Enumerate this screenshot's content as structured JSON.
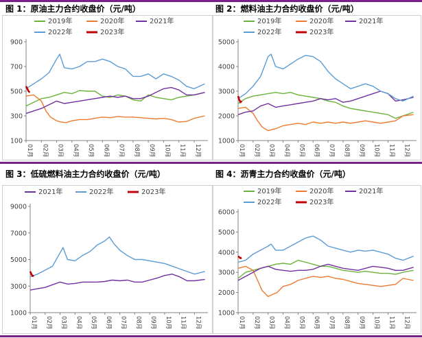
{
  "colors": {
    "2019": "#6bb23a",
    "2020": "#ee7a2f",
    "2021": "#7030a0",
    "2022": "#5b9bd5",
    "2023": "#c00000",
    "frame": "#7a1f8c"
  },
  "panels": [
    {
      "title": "图 1：原油主力合约收盘价（元/吨）"
    },
    {
      "title": "图 2：燃料油主力合约收盘价（元/吨）"
    },
    {
      "title": "图 3：低硫燃料油主力合约收盘价（元/吨）"
    },
    {
      "title": "图 4：沥青主力合约收盘价（元/吨）"
    }
  ],
  "chart_data": [
    {
      "type": "line",
      "title": "原油主力合约收盘价（元/吨）",
      "unit": "元/吨",
      "ylim": [
        100,
        900
      ],
      "yticks": [
        100,
        300,
        500,
        700,
        900
      ],
      "xticks": [
        "01月",
        "02月",
        "03月",
        "04月",
        "05月",
        "06月",
        "07月",
        "08月",
        "09月",
        "10月",
        "11月",
        "12月"
      ],
      "legend": "top",
      "series": [
        {
          "name": "2019年",
          "x": [
            1,
            1.5,
            2,
            2.5,
            3,
            3.5,
            4,
            4.5,
            5,
            5.5,
            6,
            6.5,
            7,
            7.5,
            8,
            8.5,
            9,
            9.5,
            10,
            10.5,
            11,
            11.5,
            12,
            12.7
          ],
          "y": [
            380,
            410,
            440,
            450,
            470,
            490,
            480,
            505,
            500,
            500,
            460,
            450,
            470,
            460,
            430,
            420,
            470,
            450,
            440,
            430,
            450,
            460,
            470,
            490
          ]
        },
        {
          "name": "2020年",
          "x": [
            1,
            1.5,
            2,
            2.3,
            2.6,
            3,
            3.3,
            3.6,
            4,
            4.5,
            5,
            5.5,
            6,
            6.5,
            7,
            7.5,
            8,
            8.5,
            9,
            9.5,
            10,
            10.5,
            11,
            11.5,
            12,
            12.7
          ],
          "y": [
            460,
            470,
            420,
            340,
            290,
            260,
            250,
            245,
            260,
            270,
            270,
            280,
            290,
            285,
            295,
            290,
            290,
            285,
            280,
            275,
            280,
            270,
            250,
            255,
            280,
            300
          ]
        },
        {
          "name": "2021年",
          "x": [
            1,
            1.5,
            2,
            2.5,
            3,
            3.5,
            4,
            4.5,
            5,
            5.5,
            6,
            6.5,
            7,
            7.5,
            8,
            8.5,
            9,
            9.5,
            10,
            10.5,
            11,
            11.5,
            12,
            12.7
          ],
          "y": [
            320,
            340,
            360,
            390,
            420,
            400,
            410,
            420,
            430,
            440,
            450,
            460,
            450,
            460,
            440,
            440,
            460,
            490,
            520,
            530,
            510,
            470,
            470,
            490
          ]
        },
        {
          "name": "2022年",
          "x": [
            1,
            1.5,
            2,
            2.5,
            3,
            3.2,
            3.5,
            4,
            4.5,
            5,
            5.5,
            6,
            6.5,
            7,
            7.5,
            8,
            8.5,
            9,
            9.5,
            10,
            10.5,
            11,
            11.5,
            12,
            12.7
          ],
          "y": [
            520,
            560,
            600,
            650,
            760,
            800,
            690,
            680,
            700,
            740,
            740,
            760,
            740,
            700,
            680,
            620,
            620,
            640,
            600,
            640,
            620,
            590,
            540,
            520,
            560
          ]
        },
        {
          "name": "2023年",
          "x": [
            1,
            1.08,
            1.16,
            1.24
          ],
          "y": [
            540,
            520,
            500,
            490
          ]
        }
      ]
    },
    {
      "type": "line",
      "title": "燃料油主力合约收盘价（元/吨）",
      "unit": "元/吨",
      "ylim": [
        1000,
        5000
      ],
      "yticks": [
        1000,
        2000,
        3000,
        4000,
        5000
      ],
      "xticks": [
        "01月",
        "02月",
        "03月",
        "04月",
        "05月",
        "06月",
        "07月",
        "08月",
        "09月",
        "10月",
        "11月",
        "12月"
      ],
      "legend": "top",
      "series": [
        {
          "name": "2019年",
          "x": [
            1,
            1.5,
            2,
            2.5,
            3,
            3.5,
            4,
            4.5,
            5,
            5.5,
            6,
            6.5,
            7,
            7.5,
            8,
            8.5,
            9,
            9.5,
            10,
            10.5,
            11,
            11.5,
            12,
            12.7
          ],
          "y": [
            2500,
            2700,
            2800,
            2850,
            2900,
            2950,
            2900,
            2950,
            2850,
            2800,
            2750,
            2700,
            2600,
            2550,
            2400,
            2300,
            2250,
            2200,
            2150,
            2100,
            2050,
            1900,
            2000,
            2150
          ]
        },
        {
          "name": "2020年",
          "x": [
            1,
            1.5,
            2,
            2.3,
            2.6,
            3,
            3.3,
            3.6,
            4,
            4.5,
            5,
            5.5,
            6,
            6.5,
            7,
            7.5,
            8,
            8.5,
            9,
            9.5,
            10,
            10.5,
            11,
            11.5,
            12,
            12.7
          ],
          "y": [
            2300,
            2350,
            2100,
            1800,
            1550,
            1400,
            1450,
            1500,
            1600,
            1650,
            1700,
            1650,
            1750,
            1700,
            1750,
            1700,
            1750,
            1700,
            1750,
            1800,
            1750,
            1700,
            1750,
            1800,
            2000,
            2050
          ]
        },
        {
          "name": "2021年",
          "x": [
            1,
            1.5,
            2,
            2.5,
            3,
            3.5,
            4,
            4.5,
            5,
            5.5,
            6,
            6.5,
            7,
            7.5,
            8,
            8.5,
            9,
            9.5,
            10,
            10.5,
            11,
            11.5,
            12,
            12.7
          ],
          "y": [
            2050,
            2150,
            2200,
            2400,
            2500,
            2350,
            2400,
            2450,
            2500,
            2550,
            2600,
            2700,
            2650,
            2700,
            2550,
            2600,
            2700,
            2800,
            2900,
            3000,
            2900,
            2600,
            2650,
            2750
          ]
        },
        {
          "name": "2022年",
          "x": [
            1,
            1.5,
            2,
            2.5,
            3,
            3.2,
            3.5,
            4,
            4.5,
            5,
            5.5,
            6,
            6.5,
            7,
            7.5,
            8,
            8.5,
            9,
            9.5,
            10,
            10.5,
            11,
            11.5,
            12,
            12.7
          ],
          "y": [
            2700,
            2900,
            3200,
            3600,
            4400,
            4500,
            4000,
            3900,
            4100,
            4300,
            4450,
            4400,
            4200,
            3800,
            3500,
            3300,
            3100,
            3200,
            3300,
            3200,
            3000,
            2900,
            2700,
            2600,
            2800
          ]
        },
        {
          "name": "2023年",
          "x": [
            1,
            1.08,
            1.16,
            1.24
          ],
          "y": [
            2800,
            2650,
            2550,
            2600
          ]
        }
      ]
    },
    {
      "type": "line",
      "title": "低硫燃料油主力合约收盘价（元/吨）",
      "unit": "元/吨",
      "ylim": [
        1000,
        9000
      ],
      "yticks": [
        1000,
        3000,
        5000,
        7000,
        9000
      ],
      "xticks": [
        "01月",
        "02月",
        "03月",
        "04月",
        "05月",
        "06月",
        "07月",
        "08月",
        "09月",
        "10月",
        "11月",
        "12月"
      ],
      "legend": "top",
      "series": [
        {
          "name": "2021年",
          "x": [
            1,
            1.5,
            2,
            2.5,
            3,
            3.5,
            4,
            4.5,
            5,
            5.5,
            6,
            6.5,
            7,
            7.5,
            8,
            8.5,
            9,
            9.5,
            10,
            10.5,
            11,
            11.5,
            12,
            12.7
          ],
          "y": [
            2700,
            2800,
            2900,
            3100,
            3300,
            3150,
            3200,
            3300,
            3300,
            3300,
            3350,
            3450,
            3400,
            3450,
            3300,
            3300,
            3450,
            3600,
            3800,
            3900,
            3700,
            3400,
            3400,
            3500
          ]
        },
        {
          "name": "2022年",
          "x": [
            1,
            1.5,
            2,
            2.5,
            3,
            3.2,
            3.5,
            4,
            4.5,
            5,
            5.5,
            6,
            6.3,
            6.6,
            7,
            7.5,
            8,
            8.5,
            9,
            9.5,
            10,
            10.5,
            11,
            11.5,
            12,
            12.7
          ],
          "y": [
            3700,
            3900,
            4200,
            4500,
            5500,
            5900,
            5000,
            4900,
            5300,
            5600,
            6100,
            6400,
            6700,
            6200,
            5700,
            5300,
            5000,
            5000,
            4900,
            4800,
            4700,
            4500,
            4300,
            4100,
            3900,
            4100
          ]
        },
        {
          "name": "2023年",
          "x": [
            1,
            1.08,
            1.16,
            1.24
          ],
          "y": [
            4100,
            3900,
            3750,
            3800
          ]
        }
      ]
    },
    {
      "type": "line",
      "title": "沥青主力合约收盘价（元/吨）",
      "unit": "元/吨",
      "ylim": [
        1000,
        6000
      ],
      "yticks": [
        1000,
        2000,
        3000,
        4000,
        5000,
        6000
      ],
      "xticks": [
        "01月",
        "02月",
        "03月",
        "04月",
        "05月",
        "06月",
        "07月",
        "08月",
        "09月",
        "10月",
        "11月",
        "12月"
      ],
      "legend": "top",
      "series": [
        {
          "name": "2019年",
          "x": [
            1,
            1.5,
            2,
            2.5,
            3,
            3.5,
            4,
            4.5,
            5,
            5.5,
            6,
            6.5,
            7,
            7.5,
            8,
            8.5,
            9,
            9.5,
            10,
            10.5,
            11,
            11.5,
            12,
            12.7
          ],
          "y": [
            2700,
            3000,
            3100,
            3200,
            3300,
            3400,
            3450,
            3400,
            3600,
            3500,
            3400,
            3300,
            3300,
            3200,
            3100,
            3050,
            3000,
            3050,
            3000,
            2950,
            2950,
            2900,
            3000,
            3100
          ]
        },
        {
          "name": "2020年",
          "x": [
            1,
            1.5,
            2,
            2.3,
            2.6,
            3,
            3.3,
            3.6,
            4,
            4.5,
            5,
            5.5,
            6,
            6.5,
            7,
            7.5,
            8,
            8.5,
            9,
            9.5,
            10,
            10.5,
            11,
            11.5,
            12,
            12.7
          ],
          "y": [
            3200,
            3300,
            3100,
            2600,
            2100,
            1800,
            1900,
            2000,
            2300,
            2400,
            2600,
            2700,
            2800,
            2750,
            2800,
            2700,
            2650,
            2550,
            2450,
            2400,
            2350,
            2300,
            2350,
            2400,
            2700,
            2600
          ]
        },
        {
          "name": "2021年",
          "x": [
            1,
            1.5,
            2,
            2.5,
            3,
            3.5,
            4,
            4.5,
            5,
            5.5,
            6,
            6.5,
            7,
            7.5,
            8,
            8.5,
            9,
            9.5,
            10,
            10.5,
            11,
            11.5,
            12,
            12.7
          ],
          "y": [
            2600,
            2800,
            3000,
            3200,
            3300,
            3150,
            3100,
            3050,
            3100,
            3100,
            3150,
            3300,
            3400,
            3300,
            3200,
            3150,
            3100,
            3200,
            3300,
            3250,
            3200,
            3100,
            3100,
            3250
          ]
        },
        {
          "name": "2022年",
          "x": [
            1,
            1.5,
            2,
            2.5,
            3,
            3.2,
            3.5,
            4,
            4.5,
            5,
            5.5,
            6,
            6.5,
            7,
            7.5,
            8,
            8.5,
            9,
            9.5,
            10,
            10.5,
            11,
            11.5,
            12,
            12.7
          ],
          "y": [
            3500,
            3600,
            3900,
            4100,
            4300,
            4400,
            4100,
            4100,
            4300,
            4500,
            4700,
            4800,
            4600,
            4300,
            4200,
            4100,
            4000,
            4100,
            4050,
            4100,
            4000,
            3900,
            3700,
            3600,
            3800
          ]
        },
        {
          "name": "2023年",
          "x": [
            1,
            1.08,
            1.16,
            1.24
          ],
          "y": [
            3800,
            3750,
            3700,
            3720
          ]
        }
      ]
    }
  ]
}
